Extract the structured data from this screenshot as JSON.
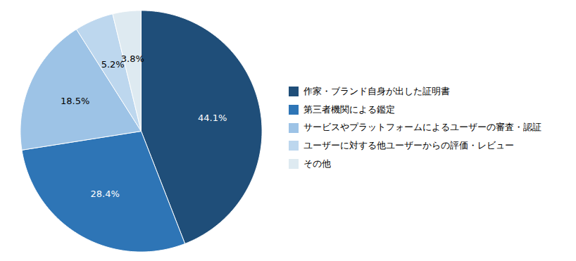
{
  "chart_data": {
    "type": "pie",
    "categories": [
      "作家・ブランド自身が出した証明書",
      "第三者機関による鑑定",
      "サービスやプラットフォームによるユーザーの審査・認証",
      "ユーザーに対する他ユーザーからの評価・レビュー",
      "その他"
    ],
    "values": [
      44.1,
      28.4,
      18.5,
      5.2,
      3.8
    ],
    "value_labels": [
      "44.1%",
      "28.4%",
      "18.5%",
      "5.2%",
      "3.8%"
    ],
    "colors": [
      "#1f4e79",
      "#2e75b6",
      "#9dc3e6",
      "#bdd7ee",
      "#deeaf1"
    ],
    "data_labels": true,
    "legend": "right"
  }
}
